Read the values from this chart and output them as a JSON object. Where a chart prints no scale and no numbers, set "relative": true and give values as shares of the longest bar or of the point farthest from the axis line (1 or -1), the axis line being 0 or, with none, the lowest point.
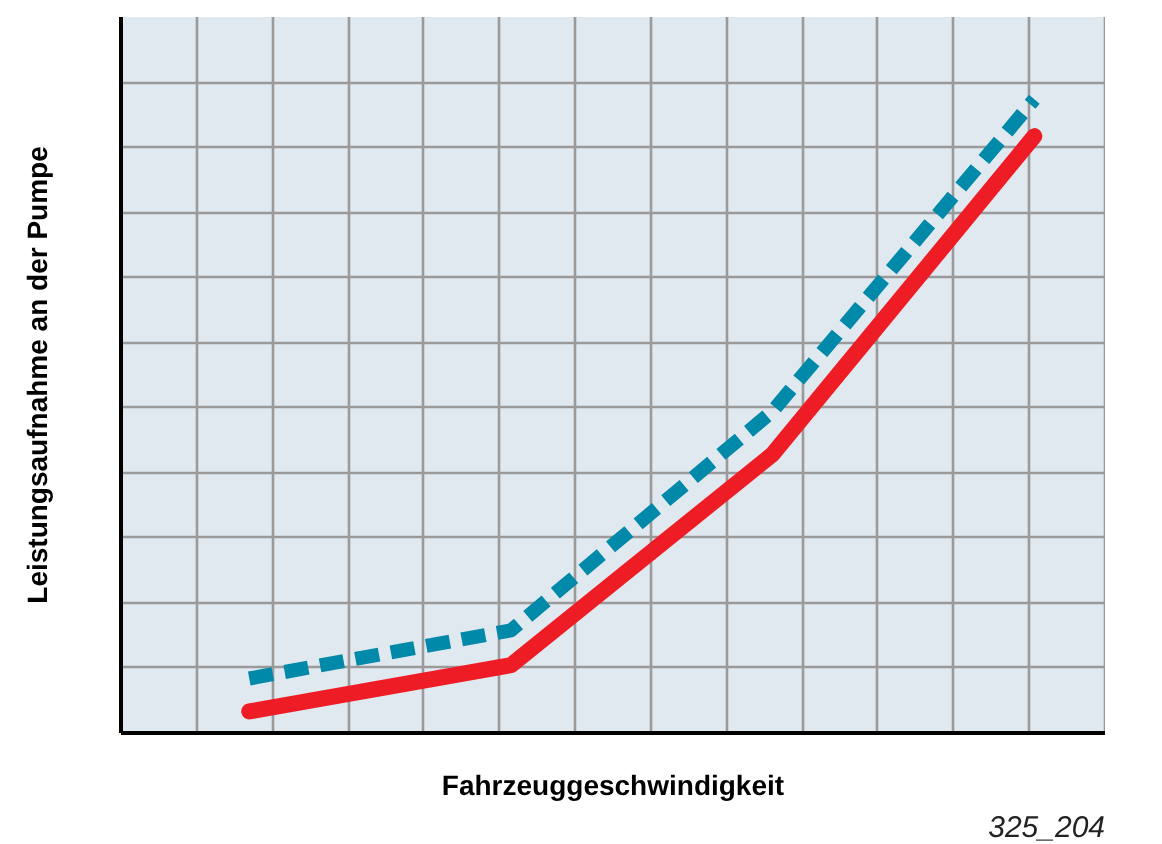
{
  "chart_data": {
    "type": "line",
    "xlabel": "Fahrzeuggeschwindigkeit",
    "ylabel": "Leistungsaufnahme an der Pumpe",
    "annotations": [
      "325_204"
    ],
    "categories": [
      null,
      null,
      null,
      null
    ],
    "relative": true,
    "grid": true,
    "tick_labels": false,
    "series": [
      {
        "color": "#ee1c25",
        "values": [
          0.034,
          0.107,
          0.44,
          0.942
        ],
        "line_style": "solid"
      },
      {
        "color": "#0089a8",
        "values": [
          0.086,
          0.162,
          0.508,
          1.0
        ],
        "line_style": "dashed"
      }
    ]
  }
}
